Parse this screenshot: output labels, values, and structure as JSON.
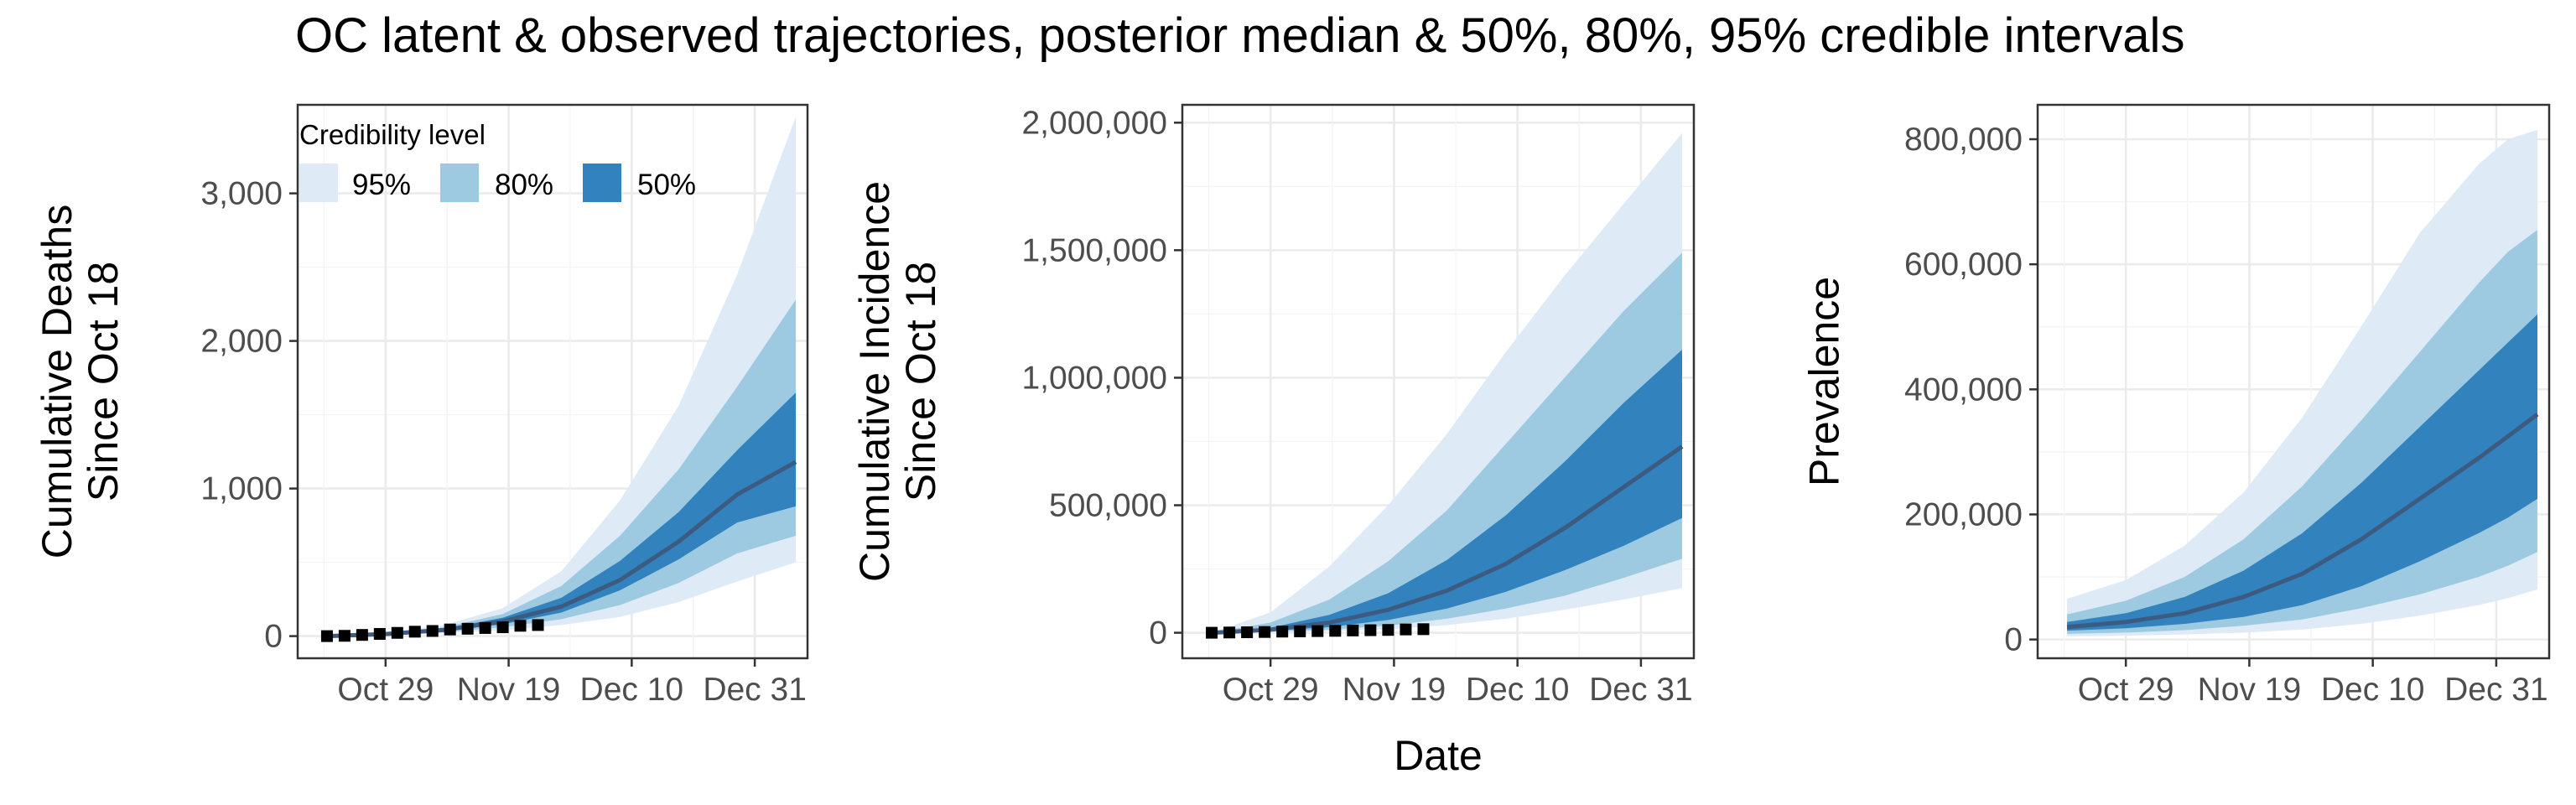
{
  "figure": {
    "title": "OC latent & observed trajectories, posterior median & 50%, 80%, 95% credible intervals",
    "xlabel": "Date"
  },
  "legend": {
    "title": "Credibility level",
    "entries": [
      {
        "label": "95%",
        "color": "#deebf7"
      },
      {
        "label": "80%",
        "color": "#9ecae1"
      },
      {
        "label": "50%",
        "color": "#3182bd"
      }
    ]
  },
  "colors": {
    "band95": "#deebf7",
    "band80": "#9ecae1",
    "band50": "#3182bd",
    "median": "#3d5a80",
    "observed": "#000000",
    "grid_major": "#ebebeb",
    "grid_minor": "#f4f4f4",
    "axis_text": "#4d4d4d"
  },
  "chart_data": [
    {
      "type": "area",
      "ylabel": "Cumulative Deaths\nSince Oct 18",
      "x_unit": "days since Oct 18",
      "x_ticks": [
        {
          "label": "Oct 29",
          "day": 11
        },
        {
          "label": "Nov 19",
          "day": 32
        },
        {
          "label": "Dec 10",
          "day": 53
        },
        {
          "label": "Dec 31",
          "day": 74
        }
      ],
      "xlim": [
        -4,
        83
      ],
      "ylim": [
        -150,
        3600
      ],
      "y_ticks": [
        {
          "label": "0",
          "value": 0
        },
        {
          "label": "1,000",
          "value": 1000
        },
        {
          "label": "2,000",
          "value": 2000
        },
        {
          "label": "3,000",
          "value": 3000
        }
      ],
      "x": [
        1,
        11,
        21,
        31,
        41,
        51,
        61,
        71,
        81
      ],
      "lower95": [
        0,
        8,
        20,
        40,
        75,
        130,
        230,
        370,
        500
      ],
      "lower80": [
        0,
        10,
        28,
        60,
        115,
        210,
        360,
        560,
        680
      ],
      "lower50": [
        0,
        12,
        35,
        80,
        160,
        310,
        520,
        770,
        880
      ],
      "median": [
        0,
        14,
        42,
        100,
        200,
        380,
        640,
        960,
        1180
      ],
      "upper50": [
        0,
        16,
        50,
        125,
        260,
        510,
        840,
        1260,
        1650
      ],
      "upper80": [
        0,
        18,
        60,
        150,
        340,
        680,
        1130,
        1690,
        2280
      ],
      "upper95": [
        0,
        22,
        75,
        190,
        440,
        920,
        1560,
        2450,
        3520
      ],
      "observed_x": [
        1,
        4,
        7,
        10,
        13,
        16,
        19,
        22,
        25,
        28,
        31,
        34,
        37
      ],
      "observed_y": [
        0,
        2,
        8,
        15,
        22,
        30,
        35,
        45,
        50,
        55,
        60,
        70,
        75
      ]
    },
    {
      "type": "area",
      "ylabel": "Cumulative Incidence\nSince Oct 18",
      "x_unit": "days since Oct 18",
      "x_ticks": [
        {
          "label": "Oct 29",
          "day": 11
        },
        {
          "label": "Nov 19",
          "day": 32
        },
        {
          "label": "Dec 10",
          "day": 53
        },
        {
          "label": "Dec 31",
          "day": 74
        }
      ],
      "xlim": [
        -4,
        83
      ],
      "ylim": [
        -100000,
        2070000
      ],
      "y_ticks": [
        {
          "label": "0",
          "value": 0
        },
        {
          "label": "500,000",
          "value": 500000
        },
        {
          "label": "1,000,000",
          "value": 1000000
        },
        {
          "label": "1,500,000",
          "value": 1500000
        },
        {
          "label": "2,000,000",
          "value": 2000000
        }
      ],
      "x": [
        1,
        11,
        21,
        31,
        41,
        51,
        61,
        71,
        81
      ],
      "lower95": [
        0,
        2000,
        6000,
        14000,
        30000,
        55000,
        90000,
        130000,
        175000
      ],
      "lower80": [
        0,
        4000,
        12000,
        28000,
        55000,
        95000,
        145000,
        215000,
        290000
      ],
      "lower50": [
        0,
        7000,
        22000,
        50000,
        95000,
        160000,
        245000,
        340000,
        450000
      ],
      "median": [
        0,
        12000,
        40000,
        90000,
        165000,
        270000,
        410000,
        570000,
        730000
      ],
      "upper50": [
        0,
        20000,
        70000,
        155000,
        285000,
        460000,
        670000,
        900000,
        1110000
      ],
      "upper80": [
        0,
        40000,
        130000,
        280000,
        480000,
        740000,
        1000000,
        1260000,
        1490000
      ],
      "upper95": [
        0,
        80000,
        260000,
        500000,
        780000,
        1100000,
        1400000,
        1680000,
        1960000
      ],
      "observed_x": [
        1,
        4,
        7,
        10,
        13,
        16,
        19,
        22,
        25,
        28,
        31,
        34,
        37
      ],
      "observed_y": [
        0,
        1000,
        2000,
        3000,
        4500,
        5500,
        6500,
        7500,
        9000,
        10000,
        11000,
        13000,
        14000
      ]
    },
    {
      "type": "area",
      "ylabel": "Prevalence",
      "x_unit": "days since Oct 18",
      "x_ticks": [
        {
          "label": "Oct 29",
          "day": 11
        },
        {
          "label": "Nov 19",
          "day": 32
        },
        {
          "label": "Dec 10",
          "day": 53
        },
        {
          "label": "Dec 31",
          "day": 74
        }
      ],
      "xlim": [
        -4,
        83
      ],
      "ylim": [
        -30000,
        855000
      ],
      "y_ticks": [
        {
          "label": "0",
          "value": 0
        },
        {
          "label": "200,000",
          "value": 200000
        },
        {
          "label": "400,000",
          "value": 400000
        },
        {
          "label": "600,000",
          "value": 600000
        },
        {
          "label": "800,000",
          "value": 800000
        }
      ],
      "x": [
        1,
        11,
        21,
        31,
        41,
        51,
        61,
        71,
        76,
        81
      ],
      "lower95": [
        5000,
        6000,
        8000,
        11000,
        16000,
        25000,
        38000,
        55000,
        66000,
        80000
      ],
      "lower80": [
        9000,
        11000,
        15000,
        22000,
        32000,
        50000,
        72000,
        100000,
        118000,
        140000
      ],
      "lower50": [
        14000,
        18000,
        25000,
        36000,
        55000,
        85000,
        125000,
        170000,
        195000,
        225000
      ],
      "median": [
        20000,
        28000,
        42000,
        68000,
        105000,
        160000,
        225000,
        290000,
        325000,
        360000
      ],
      "upper50": [
        28000,
        42000,
        68000,
        110000,
        170000,
        250000,
        340000,
        430000,
        475000,
        520000
      ],
      "upper80": [
        40000,
        62000,
        100000,
        160000,
        245000,
        350000,
        460000,
        570000,
        620000,
        655000
      ],
      "upper95": [
        65000,
        95000,
        150000,
        235000,
        355000,
        500000,
        650000,
        760000,
        800000,
        815000
      ]
    }
  ]
}
